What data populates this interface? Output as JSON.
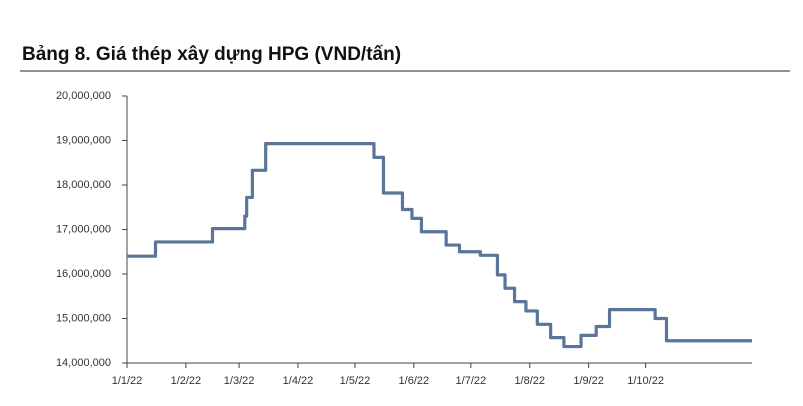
{
  "chart_data": {
    "type": "line",
    "title": "Bảng 8. Giá thép xây dựng HPG (VND/tấn)",
    "x": [
      "2022-01-01",
      "2022-01-16",
      "2022-01-16",
      "2022-02-15",
      "2022-02-15",
      "2022-03-04",
      "2022-03-04",
      "2022-03-05",
      "2022-03-05",
      "2022-03-08",
      "2022-03-08",
      "2022-03-15",
      "2022-03-15",
      "2022-05-11",
      "2022-05-11",
      "2022-05-16",
      "2022-05-16",
      "2022-05-26",
      "2022-05-26",
      "2022-05-31",
      "2022-05-31",
      "2022-06-05",
      "2022-06-05",
      "2022-06-18",
      "2022-06-18",
      "2022-06-25",
      "2022-06-25",
      "2022-07-06",
      "2022-07-06",
      "2022-07-15",
      "2022-07-15",
      "2022-07-19",
      "2022-07-19",
      "2022-07-24",
      "2022-07-24",
      "2022-07-30",
      "2022-07-30",
      "2022-08-05",
      "2022-08-05",
      "2022-08-12",
      "2022-08-12",
      "2022-08-19",
      "2022-08-19",
      "2022-08-28",
      "2022-08-28",
      "2022-09-05",
      "2022-09-05",
      "2022-09-12",
      "2022-09-12",
      "2022-10-06",
      "2022-10-06",
      "2022-10-12",
      "2022-10-12",
      "2022-11-26"
    ],
    "series": [
      {
        "color": "#5a7599",
        "values": [
          16400000,
          16400000,
          16720000,
          16720000,
          17020000,
          17020000,
          17300000,
          17300000,
          17720000,
          17720000,
          18330000,
          18330000,
          18930000,
          18930000,
          18620000,
          18620000,
          17820000,
          17820000,
          17450000,
          17450000,
          17250000,
          17250000,
          16950000,
          16950000,
          16650000,
          16650000,
          16500000,
          16500000,
          16420000,
          16420000,
          15980000,
          15980000,
          15680000,
          15680000,
          15380000,
          15380000,
          15170000,
          15170000,
          14870000,
          14870000,
          14570000,
          14570000,
          14370000,
          14370000,
          14620000,
          14620000,
          14820000,
          14820000,
          15200000,
          15200000,
          15000000,
          15000000,
          14500000,
          14500000
        ]
      }
    ],
    "xlim": [
      "2022-01-01",
      "2022-11-26"
    ],
    "xticks": [
      {
        "value": "2022-01-01",
        "label": "1/1/22"
      },
      {
        "value": "2022-02-01",
        "label": "1/2/22"
      },
      {
        "value": "2022-03-01",
        "label": "1/3/22"
      },
      {
        "value": "2022-04-01",
        "label": "1/4/22"
      },
      {
        "value": "2022-05-01",
        "label": "1/5/22"
      },
      {
        "value": "2022-06-01",
        "label": "1/6/22"
      },
      {
        "value": "2022-07-01",
        "label": "1/7/22"
      },
      {
        "value": "2022-08-01",
        "label": "1/8/22"
      },
      {
        "value": "2022-09-01",
        "label": "1/9/22"
      },
      {
        "value": "2022-10-01",
        "label": "1/10/22"
      }
    ],
    "ylim": [
      14000000,
      20000000
    ],
    "yticks": [
      {
        "value": 14000000,
        "label": "14,000,000"
      },
      {
        "value": 15000000,
        "label": "15,000,000"
      },
      {
        "value": 16000000,
        "label": "16,000,000"
      },
      {
        "value": 17000000,
        "label": "17,000,000"
      },
      {
        "value": 18000000,
        "label": "18,000,000"
      },
      {
        "value": 19000000,
        "label": "19,000,000"
      },
      {
        "value": 20000000,
        "label": "20,000,000"
      }
    ]
  }
}
